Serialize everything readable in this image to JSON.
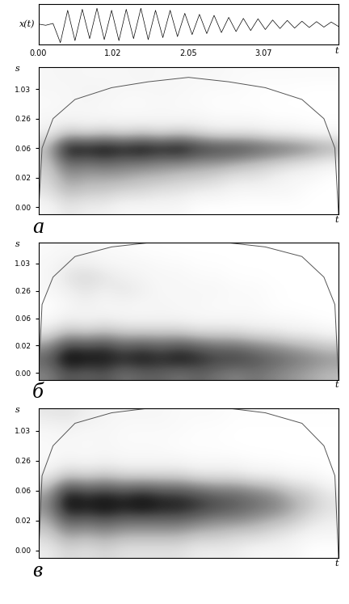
{
  "chart_data": [
    {
      "type": "line",
      "x_label": "t",
      "y_label": "x(t)",
      "tick_labels": "x",
      "color": "#000000",
      "xlim": [
        0,
        4.1
      ],
      "ylim": [
        -1,
        1
      ],
      "xticks": [
        {
          "value": 0,
          "label": "0.00"
        },
        {
          "value": 1.02,
          "label": "1.02"
        },
        {
          "value": 2.05,
          "label": "2.05"
        },
        {
          "value": 3.07,
          "label": "3.07"
        }
      ],
      "x": [
        0.0,
        0.1,
        0.2,
        0.3,
        0.4,
        0.5,
        0.6,
        0.7,
        0.8,
        0.9,
        1.0,
        1.1,
        1.2,
        1.3,
        1.4,
        1.5,
        1.6,
        1.7,
        1.8,
        1.9,
        2.0,
        2.1,
        2.2,
        2.3,
        2.4,
        2.5,
        2.6,
        2.7,
        2.8,
        2.9,
        3.0,
        3.1,
        3.2,
        3.3,
        3.4,
        3.5,
        3.6,
        3.7,
        3.8,
        3.9,
        4.0,
        4.1
      ],
      "values": [
        0.02,
        -0.04,
        0.05,
        -0.9,
        0.7,
        -0.8,
        0.75,
        -0.7,
        0.8,
        -0.75,
        0.7,
        -0.8,
        0.75,
        -0.7,
        0.8,
        -0.75,
        0.7,
        -0.65,
        0.7,
        -0.6,
        0.55,
        -0.5,
        0.5,
        -0.45,
        0.45,
        -0.4,
        0.35,
        -0.35,
        0.3,
        -0.3,
        0.28,
        -0.25,
        0.22,
        -0.2,
        0.2,
        -0.18,
        0.16,
        -0.15,
        0.14,
        -0.13,
        0.12,
        -0.1
      ]
    },
    {
      "type": "heatmap",
      "title": "а",
      "x_label": "t",
      "y_label": "s",
      "tick_labels": "y",
      "xlim": [
        0,
        4.1
      ],
      "y_categories": [
        "0.00",
        null,
        "0.02",
        null,
        "0.06",
        null,
        "0.26",
        null,
        "1.03",
        null
      ],
      "cells": [
        [
          0.1,
          0.2,
          0.15,
          0.15,
          0.1,
          0.1,
          0.1,
          0.1,
          0.05,
          0.05,
          0.05,
          0.05,
          0.05,
          0.05,
          0.05,
          0.05
        ],
        [
          0.2,
          0.35,
          0.3,
          0.3,
          0.25,
          0.25,
          0.2,
          0.2,
          0.15,
          0.15,
          0.1,
          0.1,
          0.1,
          0.1,
          0.05,
          0.05
        ],
        [
          0.25,
          0.45,
          0.4,
          0.4,
          0.4,
          0.35,
          0.35,
          0.3,
          0.3,
          0.25,
          0.2,
          0.2,
          0.15,
          0.1,
          0.1,
          0.05
        ],
        [
          0.3,
          0.6,
          0.55,
          0.6,
          0.55,
          0.55,
          0.5,
          0.5,
          0.45,
          0.45,
          0.4,
          0.35,
          0.3,
          0.25,
          0.2,
          0.15
        ],
        [
          0.35,
          0.85,
          0.8,
          0.85,
          0.8,
          0.85,
          0.8,
          0.85,
          0.75,
          0.7,
          0.7,
          0.65,
          0.6,
          0.55,
          0.5,
          0.4
        ],
        [
          0.15,
          0.3,
          0.25,
          0.3,
          0.25,
          0.3,
          0.25,
          0.3,
          0.25,
          0.2,
          0.2,
          0.2,
          0.15,
          0.15,
          0.1,
          0.1
        ],
        [
          0.1,
          0.12,
          0.1,
          0.1,
          0.1,
          0.1,
          0.1,
          0.1,
          0.1,
          0.08,
          0.08,
          0.08,
          0.06,
          0.06,
          0.05,
          0.05
        ],
        [
          0.08,
          0.1,
          0.12,
          0.1,
          0.08,
          0.08,
          0.1,
          0.08,
          0.08,
          0.06,
          0.06,
          0.06,
          0.05,
          0.05,
          0.05,
          0.05
        ],
        [
          0.1,
          0.1,
          0.12,
          0.12,
          0.1,
          0.1,
          0.1,
          0.1,
          0.08,
          0.08,
          0.08,
          0.06,
          0.06,
          0.06,
          0.05,
          0.05
        ],
        [
          0.1,
          0.12,
          0.1,
          0.1,
          0.1,
          0.12,
          0.1,
          0.1,
          0.1,
          0.1,
          0.08,
          0.08,
          0.08,
          0.08,
          0.08,
          0.08
        ]
      ],
      "coi_x": [
        0,
        0.05,
        0.2,
        0.5,
        1.0,
        1.5,
        2.05,
        2.6,
        3.1,
        3.6,
        3.9,
        4.05,
        4.1
      ],
      "coi": [
        -0.5,
        4,
        6,
        7.3,
        8.1,
        8.5,
        8.8,
        8.5,
        8.1,
        7.3,
        6,
        4,
        -0.5
      ]
    },
    {
      "type": "heatmap",
      "title": "б",
      "x_label": "t",
      "y_label": "s",
      "tick_labels": "y",
      "xlim": [
        0,
        4.1
      ],
      "y_categories": [
        "0.00",
        null,
        "0.02",
        null,
        "0.06",
        null,
        "0.26",
        null,
        "1.03",
        null
      ],
      "cells": [
        [
          0.5,
          0.65,
          0.6,
          0.65,
          0.55,
          0.6,
          0.6,
          0.55,
          0.6,
          0.55,
          0.5,
          0.55,
          0.5,
          0.45,
          0.4,
          0.35
        ],
        [
          0.6,
          0.85,
          0.8,
          0.8,
          0.75,
          0.8,
          0.75,
          0.8,
          0.75,
          0.7,
          0.7,
          0.65,
          0.6,
          0.55,
          0.5,
          0.45
        ],
        [
          0.45,
          0.7,
          0.65,
          0.7,
          0.6,
          0.65,
          0.6,
          0.65,
          0.6,
          0.55,
          0.55,
          0.5,
          0.45,
          0.4,
          0.35,
          0.3
        ],
        [
          0.2,
          0.35,
          0.3,
          0.35,
          0.3,
          0.3,
          0.3,
          0.3,
          0.25,
          0.25,
          0.25,
          0.2,
          0.2,
          0.15,
          0.15,
          0.1
        ],
        [
          0.08,
          0.15,
          0.12,
          0.15,
          0.12,
          0.12,
          0.12,
          0.12,
          0.1,
          0.1,
          0.1,
          0.1,
          0.08,
          0.08,
          0.06,
          0.05
        ],
        [
          0.05,
          0.1,
          0.15,
          0.1,
          0.12,
          0.1,
          0.12,
          0.1,
          0.1,
          0.08,
          0.08,
          0.08,
          0.06,
          0.05,
          0.05,
          0.05
        ],
        [
          0.1,
          0.15,
          0.2,
          0.15,
          0.2,
          0.15,
          0.1,
          0.1,
          0.1,
          0.1,
          0.08,
          0.08,
          0.06,
          0.05,
          0.05,
          0.05
        ],
        [
          0.1,
          0.2,
          0.25,
          0.2,
          0.15,
          0.12,
          0.1,
          0.1,
          0.08,
          0.08,
          0.06,
          0.06,
          0.05,
          0.05,
          0.05,
          0.05
        ],
        [
          0.1,
          0.15,
          0.15,
          0.12,
          0.1,
          0.1,
          0.08,
          0.08,
          0.06,
          0.06,
          0.05,
          0.05,
          0.05,
          0.05,
          0.05,
          0.05
        ],
        [
          0.08,
          0.1,
          0.1,
          0.08,
          0.08,
          0.06,
          0.06,
          0.05,
          0.05,
          0.05,
          0.05,
          0.05,
          0.05,
          0.05,
          0.05,
          0.05
        ]
      ],
      "coi_x": [
        0,
        0.05,
        0.2,
        0.5,
        1.0,
        1.5,
        2.05,
        2.6,
        3.1,
        3.6,
        3.9,
        4.05,
        4.1
      ],
      "coi": [
        -0.5,
        5,
        7,
        8.5,
        9.2,
        9.5,
        9.6,
        9.5,
        9.2,
        8.5,
        7,
        5,
        -0.5
      ]
    },
    {
      "type": "heatmap",
      "title": "в",
      "x_label": "t",
      "y_label": "s",
      "tick_labels": "y",
      "xlim": [
        0,
        4.1
      ],
      "y_categories": [
        "0.00",
        null,
        "0.02",
        null,
        "0.06",
        null,
        "0.26",
        null,
        "1.03",
        null
      ],
      "cells": [
        [
          0.15,
          0.25,
          0.2,
          0.25,
          0.2,
          0.2,
          0.2,
          0.2,
          0.15,
          0.15,
          0.15,
          0.1,
          0.1,
          0.1,
          0.05,
          0.05
        ],
        [
          0.25,
          0.4,
          0.35,
          0.4,
          0.35,
          0.35,
          0.35,
          0.35,
          0.3,
          0.3,
          0.25,
          0.25,
          0.2,
          0.15,
          0.1,
          0.1
        ],
        [
          0.35,
          0.6,
          0.55,
          0.6,
          0.55,
          0.55,
          0.55,
          0.55,
          0.5,
          0.45,
          0.45,
          0.4,
          0.35,
          0.3,
          0.2,
          0.15
        ],
        [
          0.45,
          0.8,
          0.75,
          0.8,
          0.75,
          0.8,
          0.75,
          0.75,
          0.7,
          0.65,
          0.6,
          0.55,
          0.5,
          0.4,
          0.3,
          0.2
        ],
        [
          0.35,
          0.7,
          0.6,
          0.65,
          0.6,
          0.65,
          0.6,
          0.6,
          0.55,
          0.5,
          0.5,
          0.45,
          0.4,
          0.3,
          0.25,
          0.15
        ],
        [
          0.15,
          0.3,
          0.25,
          0.3,
          0.25,
          0.25,
          0.25,
          0.25,
          0.2,
          0.2,
          0.2,
          0.15,
          0.15,
          0.1,
          0.1,
          0.05
        ],
        [
          0.08,
          0.12,
          0.1,
          0.12,
          0.1,
          0.1,
          0.1,
          0.1,
          0.08,
          0.08,
          0.08,
          0.06,
          0.06,
          0.05,
          0.05,
          0.05
        ],
        [
          0.08,
          0.1,
          0.08,
          0.1,
          0.08,
          0.08,
          0.08,
          0.06,
          0.06,
          0.06,
          0.05,
          0.05,
          0.05,
          0.05,
          0.05,
          0.05
        ],
        [
          0.1,
          0.12,
          0.1,
          0.1,
          0.08,
          0.08,
          0.08,
          0.08,
          0.06,
          0.06,
          0.05,
          0.05,
          0.05,
          0.05,
          0.05,
          0.05
        ],
        [
          0.18,
          0.2,
          0.15,
          0.12,
          0.1,
          0.1,
          0.1,
          0.08,
          0.08,
          0.08,
          0.06,
          0.06,
          0.06,
          0.06,
          0.06,
          0.06
        ]
      ],
      "coi_x": [
        0,
        0.05,
        0.2,
        0.5,
        1.0,
        1.5,
        2.05,
        2.6,
        3.1,
        3.6,
        3.9,
        4.05,
        4.1
      ],
      "coi": [
        -0.5,
        5,
        7,
        8.5,
        9.2,
        9.5,
        9.6,
        9.5,
        9.2,
        8.5,
        7,
        5,
        -0.5
      ]
    }
  ]
}
